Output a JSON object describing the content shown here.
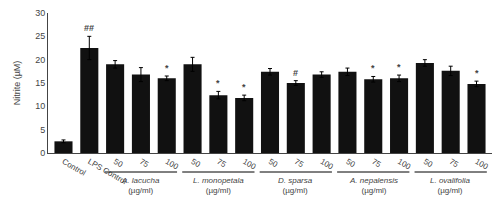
{
  "chart_data": {
    "type": "bar",
    "ylabel": "Nitrite (µM)",
    "categories": [
      "Control",
      "LPS Control",
      "50",
      "75",
      "100",
      "50",
      "75",
      "100",
      "50",
      "75",
      "100",
      "50",
      "75",
      "100",
      "50",
      "75",
      "100"
    ],
    "values": [
      2.5,
      22.5,
      19.0,
      16.8,
      16.0,
      19.0,
      12.4,
      11.8,
      17.4,
      15.0,
      16.8,
      17.4,
      15.8,
      16.0,
      19.3,
      17.6,
      14.8
    ],
    "errors": [
      0.3,
      2.5,
      0.8,
      1.5,
      0.5,
      1.5,
      0.8,
      0.6,
      0.7,
      0.5,
      0.6,
      0.8,
      0.6,
      0.7,
      0.7,
      1.0,
      0.6
    ],
    "color": "#111111",
    "ylim": [
      0,
      30
    ],
    "yticks": [
      0,
      5,
      10,
      15,
      20,
      25,
      30
    ],
    "grid": false,
    "annotations": [
      {
        "text": "##",
        "x": 1
      },
      {
        "text": "*",
        "x": 4
      },
      {
        "text": "*",
        "x": 6
      },
      {
        "text": "*",
        "x": 7
      },
      {
        "text": "#",
        "x": 9
      },
      {
        "text": "*",
        "x": 12
      },
      {
        "text": "*",
        "x": 13
      },
      {
        "text": "*",
        "x": 16
      },
      {
        "text": "A. lacucha\n(µg/ml)",
        "x": [
          2,
          3,
          4
        ]
      },
      {
        "text": "L. monopetala\n(µg/ml)",
        "x": [
          5,
          6,
          7
        ]
      },
      {
        "text": "D. sparsa\n(µg/ml)",
        "x": [
          8,
          9,
          10
        ]
      },
      {
        "text": "A. nepalensis\n(µg/ml)",
        "x": [
          11,
          12,
          13
        ]
      },
      {
        "text": "L. ovalifolia\n(µg/ml)",
        "x": [
          14,
          15,
          16
        ]
      }
    ]
  }
}
